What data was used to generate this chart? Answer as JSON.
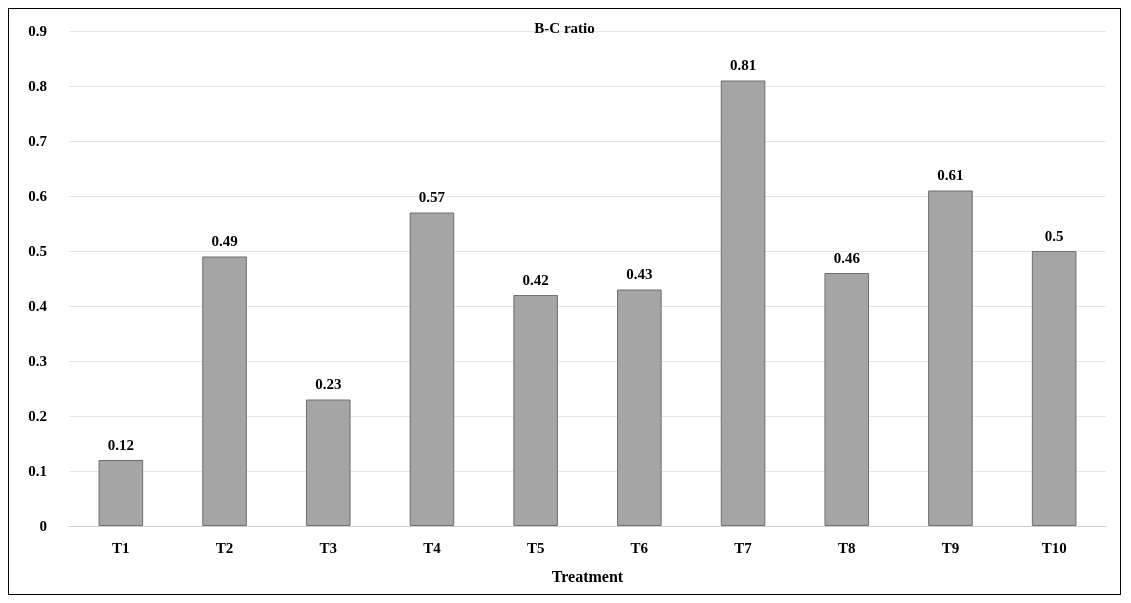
{
  "chart_data": {
    "type": "bar",
    "title": "B-C ratio",
    "xlabel": "Treatment",
    "categories": [
      "T1",
      "T2",
      "T3",
      "T4",
      "T5",
      "T6",
      "T7",
      "T8",
      "T9",
      "T10"
    ],
    "values": [
      0.12,
      0.49,
      0.23,
      0.57,
      0.42,
      0.43,
      0.81,
      0.46,
      0.61,
      0.5
    ],
    "color": "#a5a5a5",
    "ylim": [
      0,
      0.9
    ],
    "yticks": [
      0,
      0.1,
      0.2,
      0.3,
      0.4,
      0.5,
      0.6,
      0.7,
      0.8,
      0.9
    ],
    "grid": "y",
    "data_labels": true
  }
}
